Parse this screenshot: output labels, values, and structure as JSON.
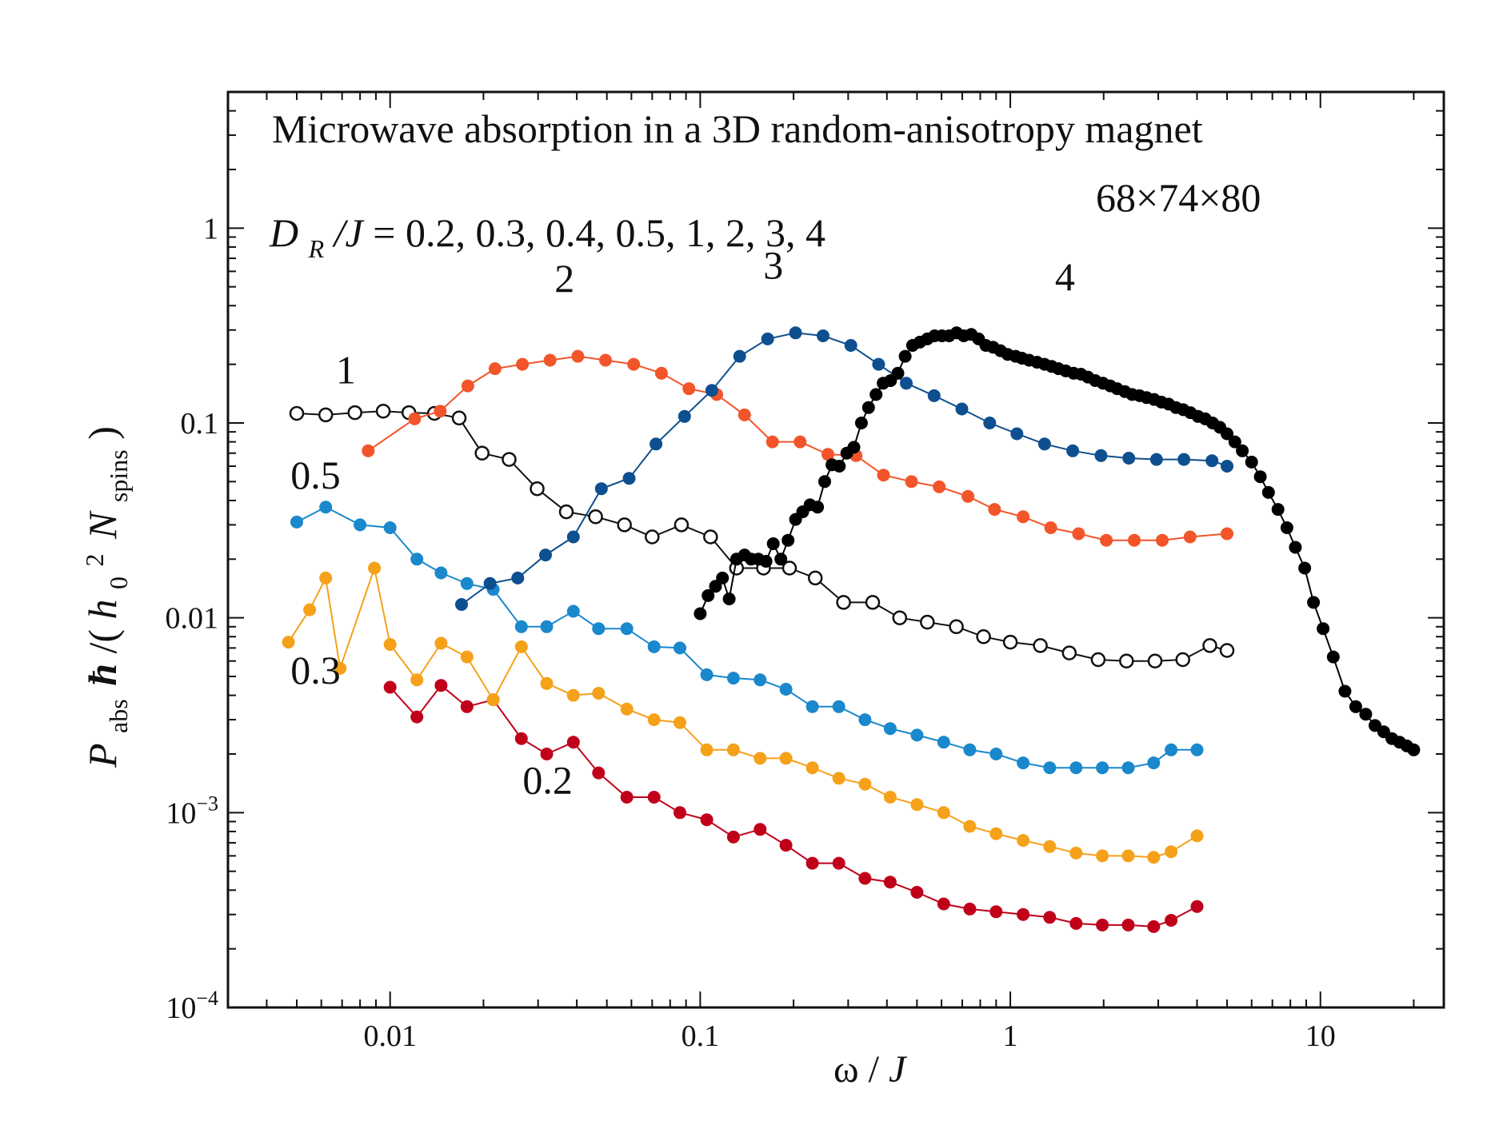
{
  "chart_data": {
    "type": "line",
    "title": "Microwave absorption in a 3D random-anisotropy magnet",
    "subtitle_lattice": "68×74×80",
    "params": {
      "symbol_main": "D",
      "symbol_sub": "R",
      "symbol_den": "/J",
      "values_text": " = 0.2, 0.3, 0.4, 0.5, 1, 2, 3, 4"
    },
    "xlabel": {
      "omega": "ω",
      "slash": "/",
      "J": "J"
    },
    "ylabel": {
      "P": "P",
      "abs": "abs",
      "hbar": "ħ",
      "paren_open": "/(",
      "h": "h",
      "sub0": "0",
      "sup2": "2",
      "N": "N",
      "spins": "spins",
      "paren_close": ")"
    },
    "xscale": "log",
    "yscale": "log",
    "xlim": [
      0.003,
      25
    ],
    "ylim": [
      0.0001,
      5
    ],
    "x_ticks": [
      {
        "label": "0.01",
        "value": 0.01
      },
      {
        "label": "0.1",
        "value": 0.1
      },
      {
        "label": "1",
        "value": 1
      },
      {
        "label": "10",
        "value": 10
      }
    ],
    "y_ticks": [
      {
        "value": 1,
        "base": "1",
        "exp": ""
      },
      {
        "value": 0.1,
        "base": "0.1",
        "exp": ""
      },
      {
        "value": 0.01,
        "base": "0.01",
        "exp": ""
      },
      {
        "value": 0.001,
        "base": "10",
        "exp": "−3"
      },
      {
        "value": 0.0001,
        "base": "10",
        "exp": "−4"
      }
    ],
    "series": [
      {
        "name": "0.2",
        "color": "#c0001a",
        "marker": "filled",
        "x": [
          0.01,
          0.0122,
          0.0146,
          0.0177,
          0.0215,
          0.0265,
          0.032,
          0.039,
          0.047,
          0.058,
          0.071,
          0.086,
          0.105,
          0.128,
          0.156,
          0.189,
          0.23,
          0.28,
          0.34,
          0.41,
          0.5,
          0.61,
          0.74,
          0.9,
          1.1,
          1.34,
          1.63,
          1.98,
          2.4,
          2.9,
          3.3,
          4.0
        ],
        "y": [
          0.0044,
          0.0031,
          0.0045,
          0.0035,
          0.0038,
          0.0024,
          0.002,
          0.0023,
          0.0016,
          0.0012,
          0.0012,
          0.001,
          0.00092,
          0.00075,
          0.00082,
          0.00068,
          0.00055,
          0.00055,
          0.00046,
          0.00044,
          0.00039,
          0.00034,
          0.00032,
          0.00031,
          0.0003,
          0.00029,
          0.00027,
          0.000265,
          0.000265,
          0.00026,
          0.00028,
          0.00033
        ]
      },
      {
        "name": "0.3",
        "color": "#f5a11a",
        "marker": "filled",
        "x": [
          0.0047,
          0.0055,
          0.0062,
          0.0069,
          0.0089,
          0.01,
          0.0122,
          0.0146,
          0.0177,
          0.0215,
          0.0265,
          0.032,
          0.039,
          0.047,
          0.058,
          0.071,
          0.086,
          0.105,
          0.128,
          0.156,
          0.189,
          0.23,
          0.28,
          0.34,
          0.41,
          0.5,
          0.61,
          0.74,
          0.9,
          1.1,
          1.34,
          1.63,
          1.98,
          2.4,
          2.9,
          3.3,
          4.0
        ],
        "y": [
          0.0075,
          0.011,
          0.016,
          0.0055,
          0.018,
          0.0073,
          0.0048,
          0.0074,
          0.0063,
          0.0038,
          0.0071,
          0.0046,
          0.004,
          0.0041,
          0.0034,
          0.003,
          0.0029,
          0.0021,
          0.0021,
          0.0019,
          0.0019,
          0.0017,
          0.0015,
          0.0014,
          0.0012,
          0.0011,
          0.001,
          0.00085,
          0.00078,
          0.00072,
          0.00067,
          0.00062,
          0.0006,
          0.0006,
          0.00059,
          0.00063,
          0.00076
        ]
      },
      {
        "name": "0.5",
        "color": "#1a88cc",
        "marker": "filled",
        "x": [
          0.005,
          0.0062,
          0.008,
          0.01,
          0.0122,
          0.0146,
          0.0177,
          0.0215,
          0.0265,
          0.032,
          0.039,
          0.047,
          0.058,
          0.071,
          0.086,
          0.105,
          0.128,
          0.156,
          0.189,
          0.23,
          0.28,
          0.34,
          0.41,
          0.5,
          0.61,
          0.74,
          0.9,
          1.1,
          1.34,
          1.63,
          1.98,
          2.4,
          2.9,
          3.3,
          4.0
        ],
        "y": [
          0.031,
          0.037,
          0.03,
          0.029,
          0.02,
          0.017,
          0.015,
          0.014,
          0.009,
          0.009,
          0.0108,
          0.0088,
          0.0088,
          0.0071,
          0.007,
          0.0051,
          0.0049,
          0.0048,
          0.0043,
          0.0035,
          0.0035,
          0.003,
          0.0027,
          0.0025,
          0.0023,
          0.0021,
          0.002,
          0.0018,
          0.0017,
          0.0017,
          0.0017,
          0.0017,
          0.0018,
          0.0021,
          0.0021
        ]
      },
      {
        "name": "1",
        "color": "#111111",
        "marker": "open",
        "x": [
          0.005,
          0.0062,
          0.0077,
          0.0095,
          0.0115,
          0.0139,
          0.0167,
          0.0198,
          0.0242,
          0.0298,
          0.037,
          0.046,
          0.057,
          0.07,
          0.087,
          0.108,
          0.131,
          0.16,
          0.194,
          0.235,
          0.29,
          0.36,
          0.44,
          0.54,
          0.67,
          0.82,
          1.0,
          1.25,
          1.55,
          1.92,
          2.37,
          2.93,
          3.6,
          4.4,
          5.0
        ],
        "y": [
          0.112,
          0.11,
          0.113,
          0.115,
          0.113,
          0.112,
          0.106,
          0.07,
          0.065,
          0.046,
          0.035,
          0.033,
          0.03,
          0.026,
          0.03,
          0.026,
          0.018,
          0.018,
          0.018,
          0.016,
          0.012,
          0.012,
          0.01,
          0.0095,
          0.009,
          0.008,
          0.0075,
          0.0072,
          0.0066,
          0.0061,
          0.006,
          0.006,
          0.0061,
          0.0072,
          0.0068
        ]
      },
      {
        "name": "2",
        "color": "#f2552a",
        "marker": "filled",
        "x": [
          0.0085,
          0.012,
          0.0145,
          0.0178,
          0.0218,
          0.0267,
          0.0328,
          0.0403,
          0.0495,
          0.061,
          0.075,
          0.092,
          0.113,
          0.139,
          0.171,
          0.21,
          0.258,
          0.318,
          0.39,
          0.48,
          0.59,
          0.73,
          0.89,
          1.1,
          1.35,
          1.66,
          2.04,
          2.51,
          3.09,
          3.8,
          5.0
        ],
        "y": [
          0.072,
          0.105,
          0.115,
          0.155,
          0.19,
          0.2,
          0.21,
          0.22,
          0.21,
          0.2,
          0.18,
          0.15,
          0.14,
          0.11,
          0.08,
          0.08,
          0.069,
          0.068,
          0.054,
          0.05,
          0.047,
          0.042,
          0.036,
          0.033,
          0.029,
          0.027,
          0.025,
          0.025,
          0.025,
          0.026,
          0.027
        ]
      },
      {
        "name": "3",
        "color": "#0e4f8f",
        "marker": "filled",
        "x": [
          0.017,
          0.021,
          0.0258,
          0.0317,
          0.039,
          0.048,
          0.059,
          0.072,
          0.089,
          0.109,
          0.134,
          0.165,
          0.203,
          0.249,
          0.306,
          0.376,
          0.462,
          0.568,
          0.698,
          0.858,
          1.05,
          1.29,
          1.59,
          1.96,
          2.41,
          2.96,
          3.63,
          4.47,
          5.0
        ],
        "y": [
          0.0117,
          0.015,
          0.016,
          0.021,
          0.026,
          0.046,
          0.052,
          0.078,
          0.108,
          0.147,
          0.22,
          0.27,
          0.29,
          0.28,
          0.25,
          0.2,
          0.16,
          0.138,
          0.118,
          0.1,
          0.088,
          0.078,
          0.072,
          0.068,
          0.066,
          0.065,
          0.065,
          0.064,
          0.06
        ]
      },
      {
        "name": "4",
        "color": "#000000",
        "marker": "filled",
        "x": [
          0.1,
          0.106,
          0.112,
          0.118,
          0.124,
          0.131,
          0.139,
          0.146,
          0.154,
          0.163,
          0.172,
          0.182,
          0.192,
          0.203,
          0.214,
          0.226,
          0.239,
          0.252,
          0.266,
          0.281,
          0.297,
          0.313,
          0.331,
          0.349,
          0.369,
          0.389,
          0.411,
          0.434,
          0.458,
          0.484,
          0.511,
          0.54,
          0.57,
          0.602,
          0.635,
          0.671,
          0.708,
          0.748,
          0.79,
          0.834,
          0.88,
          0.93,
          0.98,
          1.04,
          1.09,
          1.15,
          1.22,
          1.29,
          1.36,
          1.43,
          1.51,
          1.6,
          1.69,
          1.78,
          1.88,
          1.99,
          2.1,
          2.21,
          2.34,
          2.47,
          2.61,
          2.75,
          2.91,
          3.07,
          3.24,
          3.42,
          3.61,
          3.81,
          4.03,
          4.25,
          4.49,
          4.74,
          5.0,
          5.3,
          5.6,
          6.0,
          6.4,
          6.8,
          7.3,
          7.8,
          8.3,
          8.9,
          9.5,
          10.2,
          11.0,
          12.0,
          13.0,
          14.0,
          15.0,
          16.0,
          17.0,
          18.0,
          19.0,
          20.0
        ],
        "y": [
          0.0105,
          0.013,
          0.0145,
          0.016,
          0.0125,
          0.02,
          0.021,
          0.02,
          0.02,
          0.0195,
          0.024,
          0.02,
          0.025,
          0.032,
          0.035,
          0.038,
          0.037,
          0.05,
          0.061,
          0.06,
          0.07,
          0.075,
          0.1,
          0.12,
          0.14,
          0.16,
          0.165,
          0.18,
          0.22,
          0.25,
          0.26,
          0.27,
          0.28,
          0.28,
          0.28,
          0.29,
          0.28,
          0.285,
          0.27,
          0.25,
          0.245,
          0.235,
          0.225,
          0.22,
          0.215,
          0.21,
          0.205,
          0.2,
          0.195,
          0.19,
          0.185,
          0.18,
          0.178,
          0.172,
          0.165,
          0.16,
          0.155,
          0.15,
          0.145,
          0.14,
          0.138,
          0.135,
          0.132,
          0.128,
          0.125,
          0.12,
          0.117,
          0.113,
          0.108,
          0.105,
          0.1,
          0.095,
          0.088,
          0.08,
          0.072,
          0.063,
          0.053,
          0.044,
          0.036,
          0.029,
          0.023,
          0.018,
          0.012,
          0.0088,
          0.0063,
          0.0042,
          0.0035,
          0.0032,
          0.0028,
          0.0026,
          0.0024,
          0.0023,
          0.0022,
          0.0021
        ]
      }
    ],
    "curve_labels": [
      {
        "text": "1",
        "x": 0.0072,
        "y": 0.16
      },
      {
        "text": "2",
        "x": 0.0365,
        "y": 0.47
      },
      {
        "text": "3",
        "x": 0.172,
        "y": 0.55
      },
      {
        "text": "4",
        "x": 1.5,
        "y": 0.48
      },
      {
        "text": "0.5",
        "x": 0.00575,
        "y": 0.046
      },
      {
        "text": "0.3",
        "x": 0.00575,
        "y": 0.0046
      },
      {
        "text": "0.2",
        "x": 0.0322,
        "y": 0.00125
      }
    ]
  }
}
